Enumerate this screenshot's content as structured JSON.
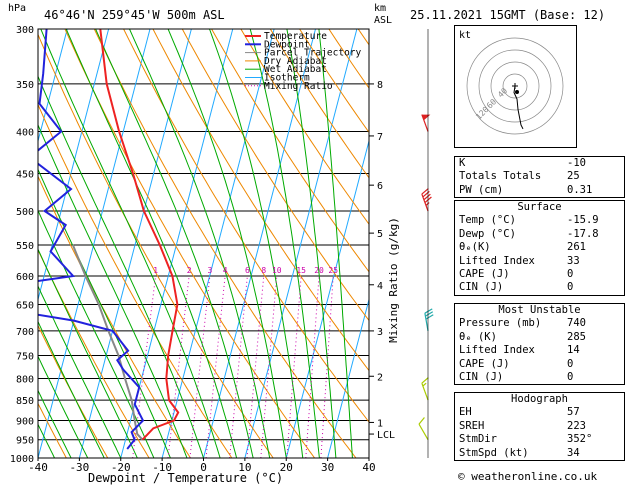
{
  "header": {
    "left_title": "46°46'N  259°45'W  500m  ASL",
    "right_title": "25.11.2021  15GMT  (Base: 12)",
    "pressure_unit": "hPa",
    "km_label_line1": "km",
    "km_label_line2": "ASL"
  },
  "chart_data": {
    "type": "skew-t",
    "xlabel": "Dewpoint / Temperature (°C)",
    "ylabel_right": "Mixing Ratio (g/kg)",
    "x_ticks": [
      -40,
      -30,
      -20,
      -10,
      0,
      10,
      20,
      30,
      40
    ],
    "pressure_ticks": [
      300,
      350,
      400,
      450,
      500,
      550,
      600,
      650,
      700,
      750,
      800,
      850,
      900,
      950,
      1000
    ],
    "km_ticks": [
      {
        "p": 350,
        "label": "8"
      },
      {
        "p": 405,
        "label": "7"
      },
      {
        "p": 465,
        "label": "6"
      },
      {
        "p": 532,
        "label": "5"
      },
      {
        "p": 615,
        "label": "4"
      },
      {
        "p": 700,
        "label": "3"
      },
      {
        "p": 795,
        "label": "2"
      },
      {
        "p": 905,
        "label": "1"
      },
      {
        "p": 935,
        "label": "LCL"
      }
    ],
    "mixing_ratio_labels": [
      "1",
      "2",
      "3",
      "4",
      "6",
      "8",
      "10",
      "15",
      "20",
      "25"
    ],
    "legend": [
      {
        "name": "Temperature",
        "color": "#ee2222",
        "style": "solid"
      },
      {
        "name": "Dewpoint",
        "color": "#2222dd",
        "style": "solid"
      },
      {
        "name": "Parcel Trajectory",
        "color": "#888888",
        "style": "solid"
      },
      {
        "name": "Dry Adiabat",
        "color": "#ee8800",
        "style": "solid"
      },
      {
        "name": "Wet Adiabat",
        "color": "#00aa00",
        "style": "solid"
      },
      {
        "name": "Isotherm",
        "color": "#22aaff",
        "style": "solid"
      },
      {
        "name": "Mixing Ratio",
        "color": "#cc00aa",
        "style": "dotted"
      }
    ],
    "temperature_profile": [
      {
        "p": 300,
        "t": -52
      },
      {
        "p": 350,
        "t": -47
      },
      {
        "p": 400,
        "t": -41
      },
      {
        "p": 450,
        "t": -35
      },
      {
        "p": 500,
        "t": -30
      },
      {
        "p": 550,
        "t": -24
      },
      {
        "p": 600,
        "t": -19
      },
      {
        "p": 650,
        "t": -16
      },
      {
        "p": 700,
        "t": -15.5
      },
      {
        "p": 750,
        "t": -15
      },
      {
        "p": 800,
        "t": -14
      },
      {
        "p": 850,
        "t": -12
      },
      {
        "p": 880,
        "t": -9
      },
      {
        "p": 900,
        "t": -9.5
      },
      {
        "p": 920,
        "t": -14
      },
      {
        "p": 950,
        "t": -15.9
      }
    ],
    "dewpoint_profile": [
      {
        "p": 300,
        "t": -65
      },
      {
        "p": 340,
        "t": -63
      },
      {
        "p": 370,
        "t": -62
      },
      {
        "p": 400,
        "t": -55
      },
      {
        "p": 430,
        "t": -61
      },
      {
        "p": 470,
        "t": -49
      },
      {
        "p": 500,
        "t": -54
      },
      {
        "p": 520,
        "t": -48
      },
      {
        "p": 560,
        "t": -50
      },
      {
        "p": 600,
        "t": -43
      },
      {
        "p": 620,
        "t": -62
      },
      {
        "p": 650,
        "t": -65
      },
      {
        "p": 680,
        "t": -40
      },
      {
        "p": 700,
        "t": -30
      },
      {
        "p": 740,
        "t": -25
      },
      {
        "p": 760,
        "t": -27
      },
      {
        "p": 780,
        "t": -25
      },
      {
        "p": 820,
        "t": -20
      },
      {
        "p": 860,
        "t": -20
      },
      {
        "p": 900,
        "t": -17
      },
      {
        "p": 930,
        "t": -19
      },
      {
        "p": 950,
        "t": -17.8
      },
      {
        "p": 975,
        "t": -19
      }
    ],
    "parcel_trajectory": [
      {
        "p": 950,
        "t": -15.9
      },
      {
        "p": 935,
        "t": -17.5
      },
      {
        "p": 900,
        "t": -19
      },
      {
        "p": 850,
        "t": -21
      },
      {
        "p": 800,
        "t": -24
      },
      {
        "p": 750,
        "t": -27
      },
      {
        "p": 700,
        "t": -31
      },
      {
        "p": 650,
        "t": -35
      },
      {
        "p": 600,
        "t": -40
      },
      {
        "p": 550,
        "t": -45
      }
    ],
    "wind_barbs": [
      {
        "p": 400,
        "speed_kt": 50,
        "dir_deg": 340
      },
      {
        "p": 500,
        "speed_kt": 45,
        "dir_deg": 340
      },
      {
        "p": 700,
        "speed_kt": 30,
        "dir_deg": 350
      },
      {
        "p": 850,
        "speed_kt": 15,
        "dir_deg": 340
      },
      {
        "p": 950,
        "speed_kt": 10,
        "dir_deg": 330
      }
    ]
  },
  "hodograph": {
    "label": "kt",
    "ring_labels": [
      "40",
      "60",
      "120"
    ],
    "trace_kt": [
      [
        0,
        0
      ],
      [
        -1,
        -5
      ],
      [
        2,
        -10
      ],
      [
        3,
        -18
      ],
      [
        4,
        -22
      ],
      [
        6,
        -30
      ],
      [
        8,
        -33
      ]
    ]
  },
  "indices": {
    "rows": [
      {
        "label": "K",
        "value": "-10"
      },
      {
        "label": "Totals Totals",
        "value": "25"
      },
      {
        "label": "PW (cm)",
        "value": "0.31"
      }
    ]
  },
  "surface": {
    "title": "Surface",
    "rows": [
      {
        "label": "Temp (°C)",
        "value": "-15.9"
      },
      {
        "label": "Dewp (°C)",
        "value": "-17.8"
      },
      {
        "label": "θₑ(K)",
        "value": "261"
      },
      {
        "label": "Lifted Index",
        "value": "33"
      },
      {
        "label": "CAPE (J)",
        "value": "0"
      },
      {
        "label": "CIN (J)",
        "value": "0"
      }
    ]
  },
  "most_unstable": {
    "title": "Most Unstable",
    "rows": [
      {
        "label": "Pressure (mb)",
        "value": "740"
      },
      {
        "label": "θₑ (K)",
        "value": "285"
      },
      {
        "label": "Lifted Index",
        "value": "14"
      },
      {
        "label": "CAPE (J)",
        "value": "0"
      },
      {
        "label": "CIN (J)",
        "value": "0"
      }
    ]
  },
  "hodograph_params": {
    "title": "Hodograph",
    "rows": [
      {
        "label": "EH",
        "value": "57"
      },
      {
        "label": "SREH",
        "value": "223"
      },
      {
        "label": "StmDir",
        "value": "352°"
      },
      {
        "label": "StmSpd (kt)",
        "value": "34"
      }
    ]
  },
  "footer": {
    "copyright": "© weatheronline.co.uk"
  },
  "colors": {
    "temperature": "#ee2222",
    "dewpoint": "#2222dd",
    "parcel": "#888888",
    "dry_adiabat": "#ee8800",
    "wet_adiabat": "#00aa00",
    "isotherm": "#22aaff",
    "mixing_ratio": "#cc00aa",
    "wind_barb_upper": "#dd2222",
    "wind_barb_mid": "#22aaaa",
    "wind_barb_low": "#aacc00"
  }
}
